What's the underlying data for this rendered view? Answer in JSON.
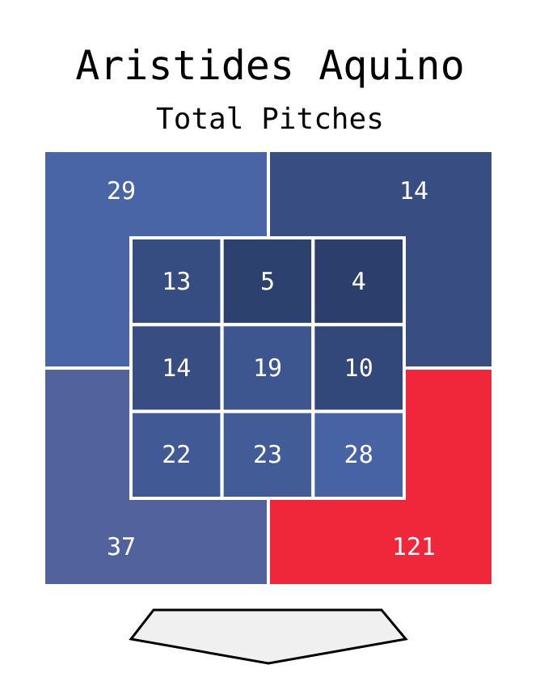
{
  "chart_data": [
    {
      "type": "heatmap",
      "title": "Aristides Aquino",
      "subtitle": "Total Pitches",
      "categories": [
        null,
        null
      ],
      "y_categories": [
        null,
        null
      ],
      "cells": [
        [
          29,
          14
        ],
        [
          37,
          121
        ]
      ],
      "cell_labels": [
        [
          "29",
          "14"
        ],
        [
          "37",
          "121"
        ]
      ]
    },
    {
      "type": "heatmap",
      "categories": [
        null,
        null,
        null
      ],
      "y_categories": [
        null,
        null,
        null
      ],
      "cells": [
        [
          13,
          5,
          4
        ],
        [
          14,
          19,
          10
        ],
        [
          22,
          23,
          28
        ]
      ],
      "cell_labels": [
        [
          "13",
          "5",
          "4"
        ],
        [
          "14",
          "19",
          "10"
        ],
        [
          "22",
          "23",
          "28"
        ]
      ]
    }
  ]
}
